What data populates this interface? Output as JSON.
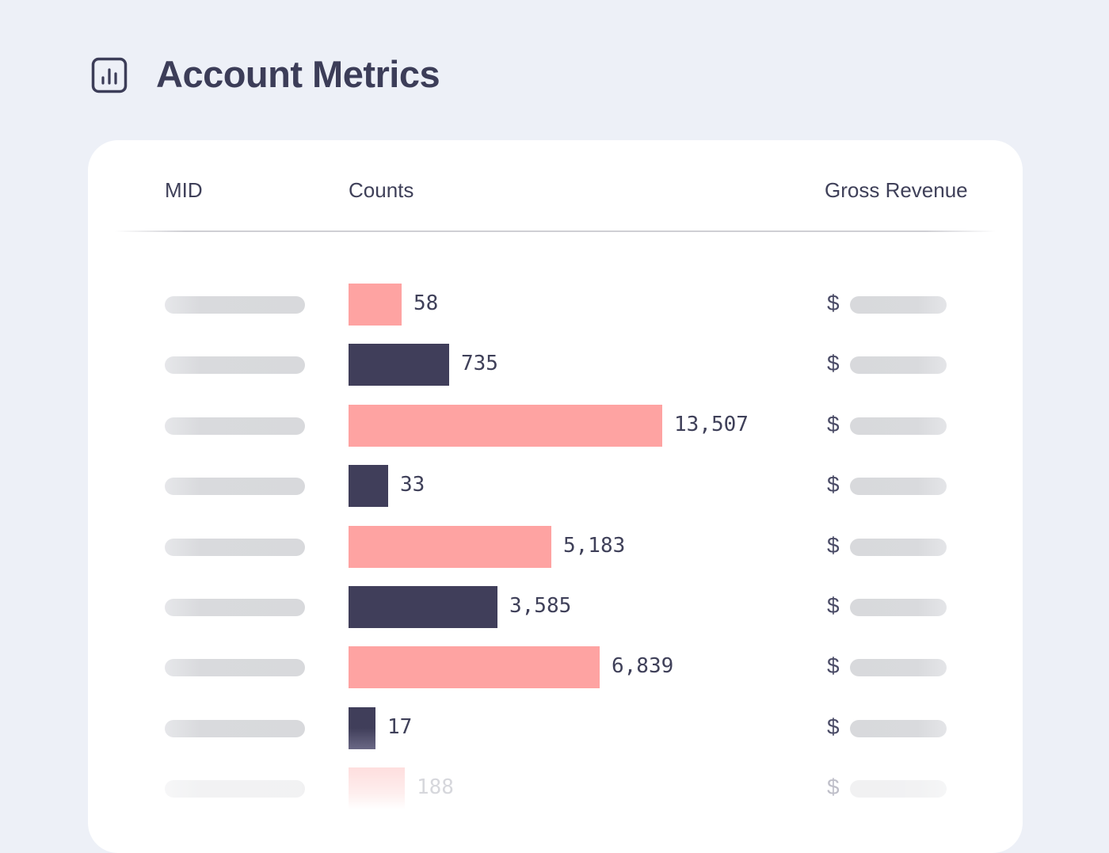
{
  "header": {
    "title": "Account Metrics",
    "icon": "bar-chart-icon"
  },
  "table": {
    "columns": {
      "mid": "MID",
      "counts": "Counts",
      "revenue": "Gross Revenue"
    },
    "currency_symbol": "$",
    "colors": {
      "pink": "#fea3a2",
      "navy": "#403e5a"
    },
    "rows": [
      {
        "count": "58",
        "value": 58,
        "bar_fill": 0.17,
        "color": "pink"
      },
      {
        "count": "735",
        "value": 735,
        "bar_fill": 0.32,
        "color": "navy"
      },
      {
        "count": "13,507",
        "value": 13507,
        "bar_fill": 1.0,
        "color": "pink"
      },
      {
        "count": "33",
        "value": 33,
        "bar_fill": 0.127,
        "color": "navy"
      },
      {
        "count": "5,183",
        "value": 5183,
        "bar_fill": 0.646,
        "color": "pink"
      },
      {
        "count": "3,585",
        "value": 3585,
        "bar_fill": 0.476,
        "color": "navy"
      },
      {
        "count": "6,839",
        "value": 6839,
        "bar_fill": 0.8,
        "color": "pink"
      },
      {
        "count": "17",
        "value": 17,
        "bar_fill": 0.086,
        "color": "navy"
      },
      {
        "count": "188",
        "value": 188,
        "bar_fill": 0.18,
        "color": "pink"
      }
    ]
  }
}
